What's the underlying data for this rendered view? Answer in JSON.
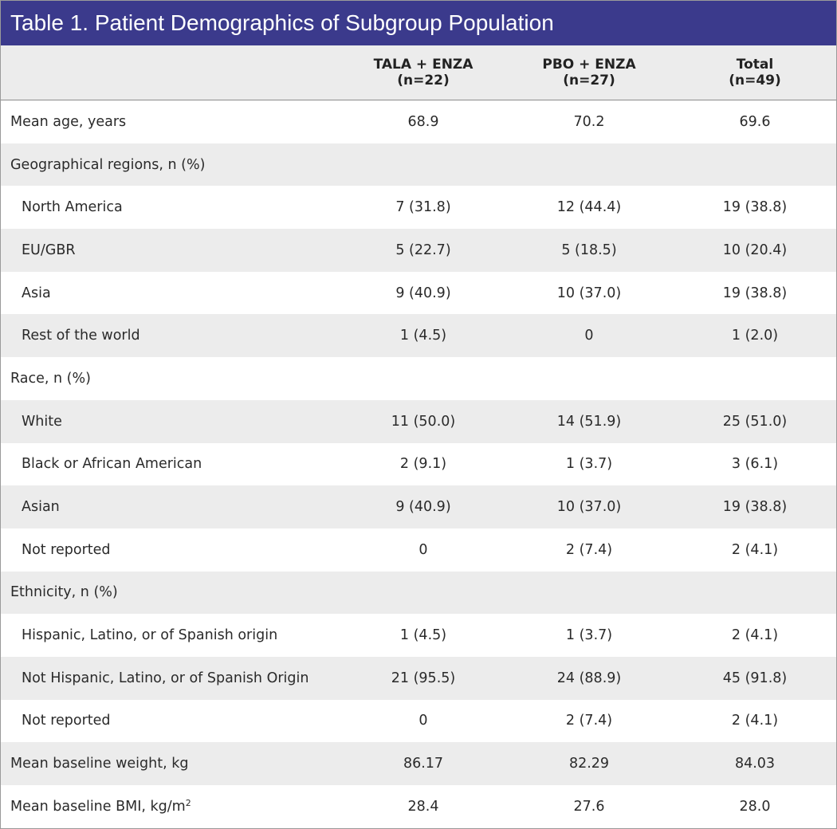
{
  "title": "Table 1. Patient Demographics of Subgroup Population",
  "columns": [
    {
      "name": "TALA + ENZA",
      "n": "(n=22)"
    },
    {
      "name": "PBO + ENZA",
      "n": "(n=27)"
    },
    {
      "name": "Total",
      "n": "(n=49)"
    }
  ],
  "rows": [
    {
      "label": "Mean age, years",
      "values": [
        "68.9",
        "70.2",
        "69.6"
      ]
    },
    {
      "label": "Geographical regions, n (%)",
      "values": [
        "",
        "",
        ""
      ]
    },
    {
      "label": "North America",
      "values": [
        "7 (31.8)",
        "12 (44.4)",
        "19 (38.8)"
      ]
    },
    {
      "label": "EU/GBR",
      "values": [
        "5 (22.7)",
        "5 (18.5)",
        "10 (20.4)"
      ]
    },
    {
      "label": "Asia",
      "values": [
        "9 (40.9)",
        "10 (37.0)",
        "19 (38.8)"
      ]
    },
    {
      "label": "Rest of the world",
      "values": [
        "1 (4.5)",
        "0",
        "1 (2.0)"
      ]
    },
    {
      "label": "Race, n (%)",
      "values": [
        "",
        "",
        ""
      ]
    },
    {
      "label": "White",
      "values": [
        "11 (50.0)",
        "14 (51.9)",
        "25 (51.0)"
      ]
    },
    {
      "label": "Black or African American",
      "values": [
        "2 (9.1)",
        "1 (3.7)",
        "3 (6.1)"
      ]
    },
    {
      "label": "Asian",
      "values": [
        "9 (40.9)",
        "10 (37.0)",
        "19 (38.8)"
      ]
    },
    {
      "label": "Not reported",
      "values": [
        "0",
        "2 (7.4)",
        "2 (4.1)"
      ]
    },
    {
      "label": "Ethnicity, n (%)",
      "values": [
        "",
        "",
        ""
      ]
    },
    {
      "label": "Hispanic, Latino, or of Spanish origin",
      "values": [
        "1 (4.5)",
        "1 (3.7)",
        "2 (4.1)"
      ]
    },
    {
      "label": "Not Hispanic, Latino, or of Spanish Origin",
      "values": [
        "21 (95.5)",
        "24 (88.9)",
        "45 (91.8)"
      ]
    },
    {
      "label": "Not reported",
      "values": [
        "0",
        "2 (7.4)",
        "2 (4.1)"
      ]
    },
    {
      "label": "Mean baseline weight, kg",
      "values": [
        "86.17",
        "82.29",
        "84.03"
      ]
    },
    {
      "label": "Mean baseline BMI, kg/m",
      "label_sup": "2",
      "values": [
        "28.4",
        "27.6",
        "28.0"
      ]
    }
  ],
  "colors": {
    "title_bg": "#3b3a8c",
    "shade": "#ececec"
  }
}
